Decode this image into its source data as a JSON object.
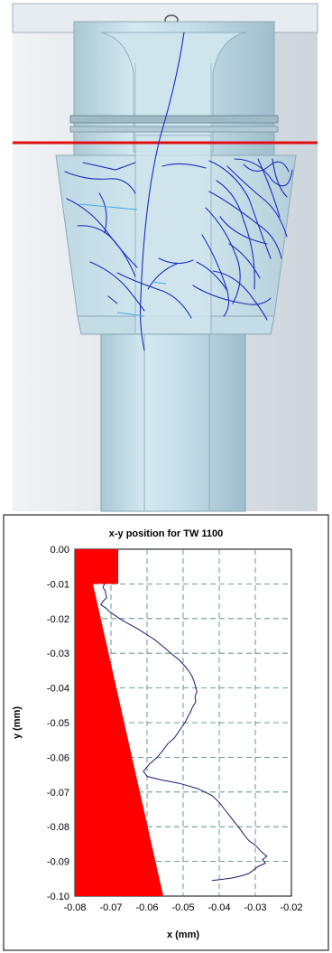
{
  "colors": {
    "background_light": "#dde3e8",
    "background_dark": "#c9d2da",
    "glass": "#c0dde8",
    "glass_edge": "#8aa8b6",
    "trajectory": "#1a2ec0",
    "trajectory_light": "#46a8e6",
    "cut_line": "#e01010",
    "plot_trace": "#1a1a6e",
    "wall_fill": "#ff0000",
    "grid": "#3a8080"
  },
  "chart_data": {
    "type": "line",
    "title": "x-y position for TW 1100",
    "xlabel": "x (mm)",
    "ylabel": "y (mm)",
    "xlim": [
      -0.08,
      -0.02
    ],
    "ylim": [
      -0.1,
      0.0
    ],
    "xticks": [
      -0.08,
      -0.07,
      -0.06,
      -0.05,
      -0.04,
      -0.03,
      -0.02
    ],
    "yticks": [
      0.0,
      -0.01,
      -0.02,
      -0.03,
      -0.04,
      -0.05,
      -0.06,
      -0.07,
      -0.08,
      -0.09,
      -0.1
    ],
    "xtick_labels": [
      "-0.08",
      "-0.07",
      "-0.06",
      "-0.05",
      "-0.04",
      "-0.03",
      "-0.02"
    ],
    "ytick_labels": [
      "0.00",
      "-0.01",
      "-0.02",
      "-0.03",
      "-0.04",
      "-0.05",
      "-0.06",
      "-0.07",
      "-0.08",
      "-0.09",
      "-0.10"
    ],
    "grid": true,
    "legend": false,
    "wall_region": [
      [
        -0.08,
        0.0
      ],
      [
        -0.068,
        0.0
      ],
      [
        -0.068,
        -0.01
      ],
      [
        -0.075,
        -0.01
      ],
      [
        -0.0555,
        -0.1
      ],
      [
        -0.08,
        -0.1
      ]
    ],
    "series": [
      {
        "x": [
          -0.0718,
          -0.0722,
          -0.0716,
          -0.0714,
          -0.0712,
          -0.0722,
          -0.0728,
          -0.0714,
          -0.0704,
          -0.069,
          -0.0676,
          -0.066,
          -0.0643,
          -0.0625,
          -0.061,
          -0.0595,
          -0.058,
          -0.0562,
          -0.0545,
          -0.0528,
          -0.051,
          -0.0497,
          -0.0485,
          -0.0476,
          -0.047,
          -0.0466,
          -0.0462,
          -0.0467,
          -0.0465,
          -0.0474,
          -0.048,
          -0.0488,
          -0.0495,
          -0.0505,
          -0.0515,
          -0.0525,
          -0.0542,
          -0.0556,
          -0.0572,
          -0.0594,
          -0.061,
          -0.06,
          -0.056,
          -0.051,
          -0.046,
          -0.042,
          -0.04,
          -0.0385,
          -0.037,
          -0.0355,
          -0.034,
          -0.033,
          -0.0318,
          -0.0298,
          -0.0285,
          -0.0275,
          -0.0268,
          -0.028,
          -0.0272,
          -0.0293,
          -0.0305,
          -0.0318,
          -0.034,
          -0.0365,
          -0.0395,
          -0.042
        ],
        "y": [
          -0.01,
          -0.011,
          -0.012,
          -0.013,
          -0.014,
          -0.015,
          -0.016,
          -0.017,
          -0.018,
          -0.019,
          -0.02,
          -0.021,
          -0.022,
          -0.023,
          -0.024,
          -0.025,
          -0.026,
          -0.0275,
          -0.029,
          -0.0305,
          -0.032,
          -0.0335,
          -0.035,
          -0.0365,
          -0.038,
          -0.0395,
          -0.041,
          -0.0425,
          -0.044,
          -0.0455,
          -0.047,
          -0.0485,
          -0.05,
          -0.0515,
          -0.053,
          -0.0545,
          -0.056,
          -0.058,
          -0.06,
          -0.062,
          -0.064,
          -0.0655,
          -0.0665,
          -0.0675,
          -0.069,
          -0.071,
          -0.073,
          -0.075,
          -0.077,
          -0.079,
          -0.081,
          -0.0825,
          -0.084,
          -0.0855,
          -0.087,
          -0.088,
          -0.0885,
          -0.0895,
          -0.0905,
          -0.0915,
          -0.0925,
          -0.0935,
          -0.0942,
          -0.0948,
          -0.0952,
          -0.0955
        ]
      }
    ]
  }
}
